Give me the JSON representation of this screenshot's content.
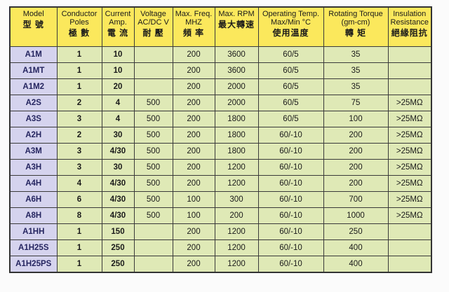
{
  "columns": [
    {
      "en": "Model",
      "zh": "型 號"
    },
    {
      "en": "Conductor Poles",
      "zh": "極 數"
    },
    {
      "en": "Current Amp.",
      "zh": "電 流"
    },
    {
      "en": "Voltage AC/DC V",
      "zh": "耐 壓"
    },
    {
      "en": "Max. Freq. MHZ",
      "zh": "頻 率"
    },
    {
      "en": "Max. RPM",
      "zh": "最大轉速"
    },
    {
      "en": "Operating Temp. Max/Min °C",
      "zh": "使用溫度"
    },
    {
      "en": "Rotating Torque (gm-cm)",
      "zh": "轉 矩"
    },
    {
      "en": "Insulation Resistance",
      "zh": "絕緣阻抗"
    }
  ],
  "rows": [
    [
      "A1M",
      "1",
      "10",
      "",
      "200",
      "3600",
      "60/5",
      "35",
      ""
    ],
    [
      "A1MT",
      "1",
      "10",
      "",
      "200",
      "3600",
      "60/5",
      "35",
      ""
    ],
    [
      "A1M2",
      "1",
      "20",
      "",
      "200",
      "2000",
      "60/5",
      "35",
      ""
    ],
    [
      "A2S",
      "2",
      "4",
      "500",
      "200",
      "2000",
      "60/5",
      "75",
      ">25MΩ"
    ],
    [
      "A3S",
      "3",
      "4",
      "500",
      "200",
      "1800",
      "60/5",
      "100",
      ">25MΩ"
    ],
    [
      "A2H",
      "2",
      "30",
      "500",
      "200",
      "1800",
      "60/-10",
      "200",
      ">25MΩ"
    ],
    [
      "A3M",
      "3",
      "4/30",
      "500",
      "200",
      "1800",
      "60/-10",
      "200",
      ">25MΩ"
    ],
    [
      "A3H",
      "3",
      "30",
      "500",
      "200",
      "1200",
      "60/-10",
      "200",
      ">25MΩ"
    ],
    [
      "A4H",
      "4",
      "4/30",
      "500",
      "200",
      "1200",
      "60/-10",
      "200",
      ">25MΩ"
    ],
    [
      "A6H",
      "6",
      "4/30",
      "500",
      "100",
      "300",
      "60/-10",
      "700",
      ">25MΩ"
    ],
    [
      "A8H",
      "8",
      "4/30",
      "500",
      "100",
      "200",
      "60/-10",
      "1000",
      ">25MΩ"
    ],
    [
      "A1HH",
      "1",
      "150",
      "",
      "200",
      "1200",
      "60/-10",
      "250",
      ""
    ],
    [
      "A1H25S",
      "1",
      "250",
      "",
      "200",
      "1200",
      "60/-10",
      "400",
      ""
    ],
    [
      "A1H25PS",
      "1",
      "250",
      "",
      "200",
      "1200",
      "60/-10",
      "400",
      ""
    ]
  ]
}
